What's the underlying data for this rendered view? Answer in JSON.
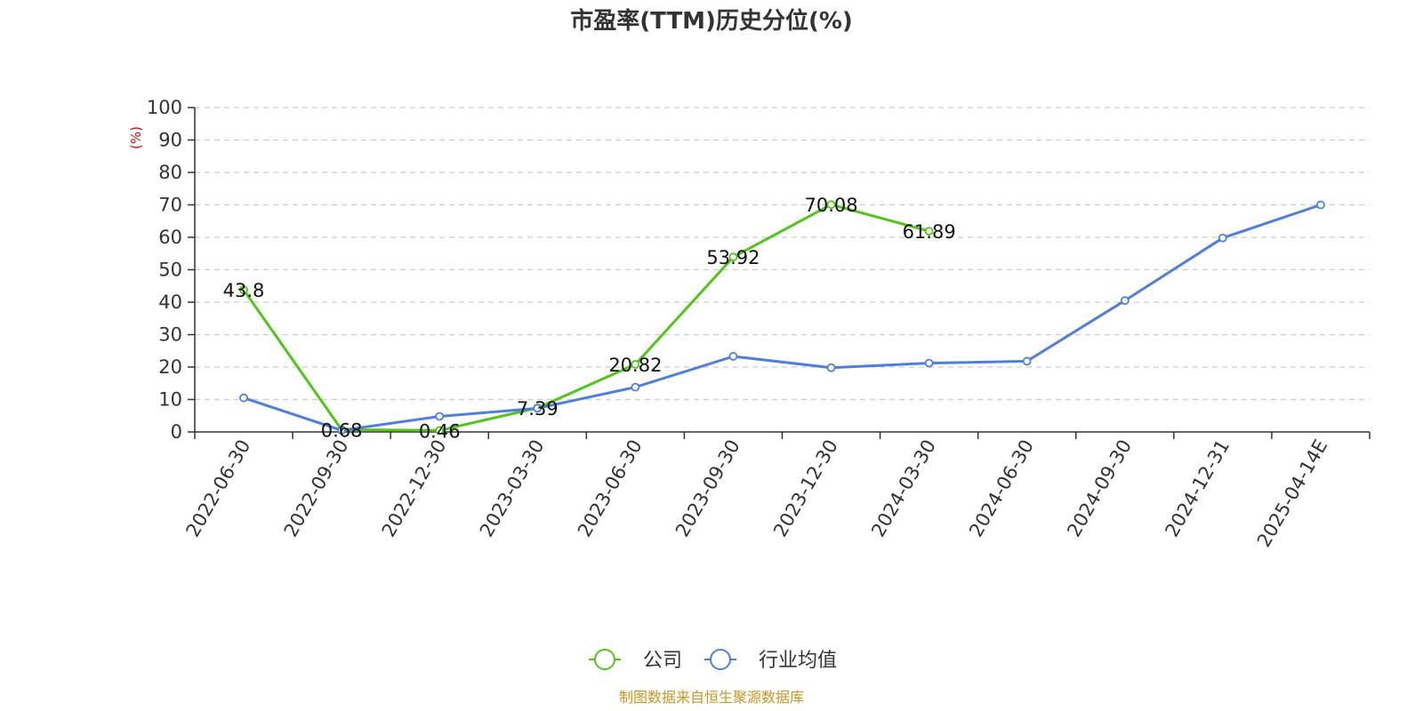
{
  "chart_data": {
    "type": "line",
    "title": "市盈率(TTM)历史分位(%)",
    "ylabel": "(%)",
    "ylim": [
      0,
      100
    ],
    "yticks": [
      0,
      10,
      20,
      30,
      40,
      50,
      60,
      70,
      80,
      90,
      100
    ],
    "grid": true,
    "legend_position": "bottom",
    "categories": [
      "2022-06-30",
      "2022-09-30",
      "2022-12-30",
      "2023-03-30",
      "2023-06-30",
      "2023-09-30",
      "2023-12-30",
      "2024-03-30",
      "2024-06-30",
      "2024-09-30",
      "2024-12-31",
      "2025-04-14E"
    ],
    "series": [
      {
        "name": "公司",
        "color": "#52c41a",
        "values": [
          43.8,
          0.68,
          0.46,
          7.39,
          20.82,
          53.92,
          70.08,
          61.89,
          null,
          null,
          null,
          null
        ],
        "labels": [
          "43.8",
          "0.68",
          "0.46",
          "7.39",
          "20.82",
          "53.92",
          "70.08",
          "61.89",
          "",
          "",
          "",
          ""
        ]
      },
      {
        "name": "行业均值",
        "color": "#4e7fdc",
        "values": [
          10.5,
          0.5,
          4.8,
          7.3,
          13.8,
          23.3,
          19.8,
          21.2,
          21.8,
          40.5,
          59.8,
          70.0
        ]
      }
    ],
    "source": "制图数据来自恒生聚源数据库"
  }
}
